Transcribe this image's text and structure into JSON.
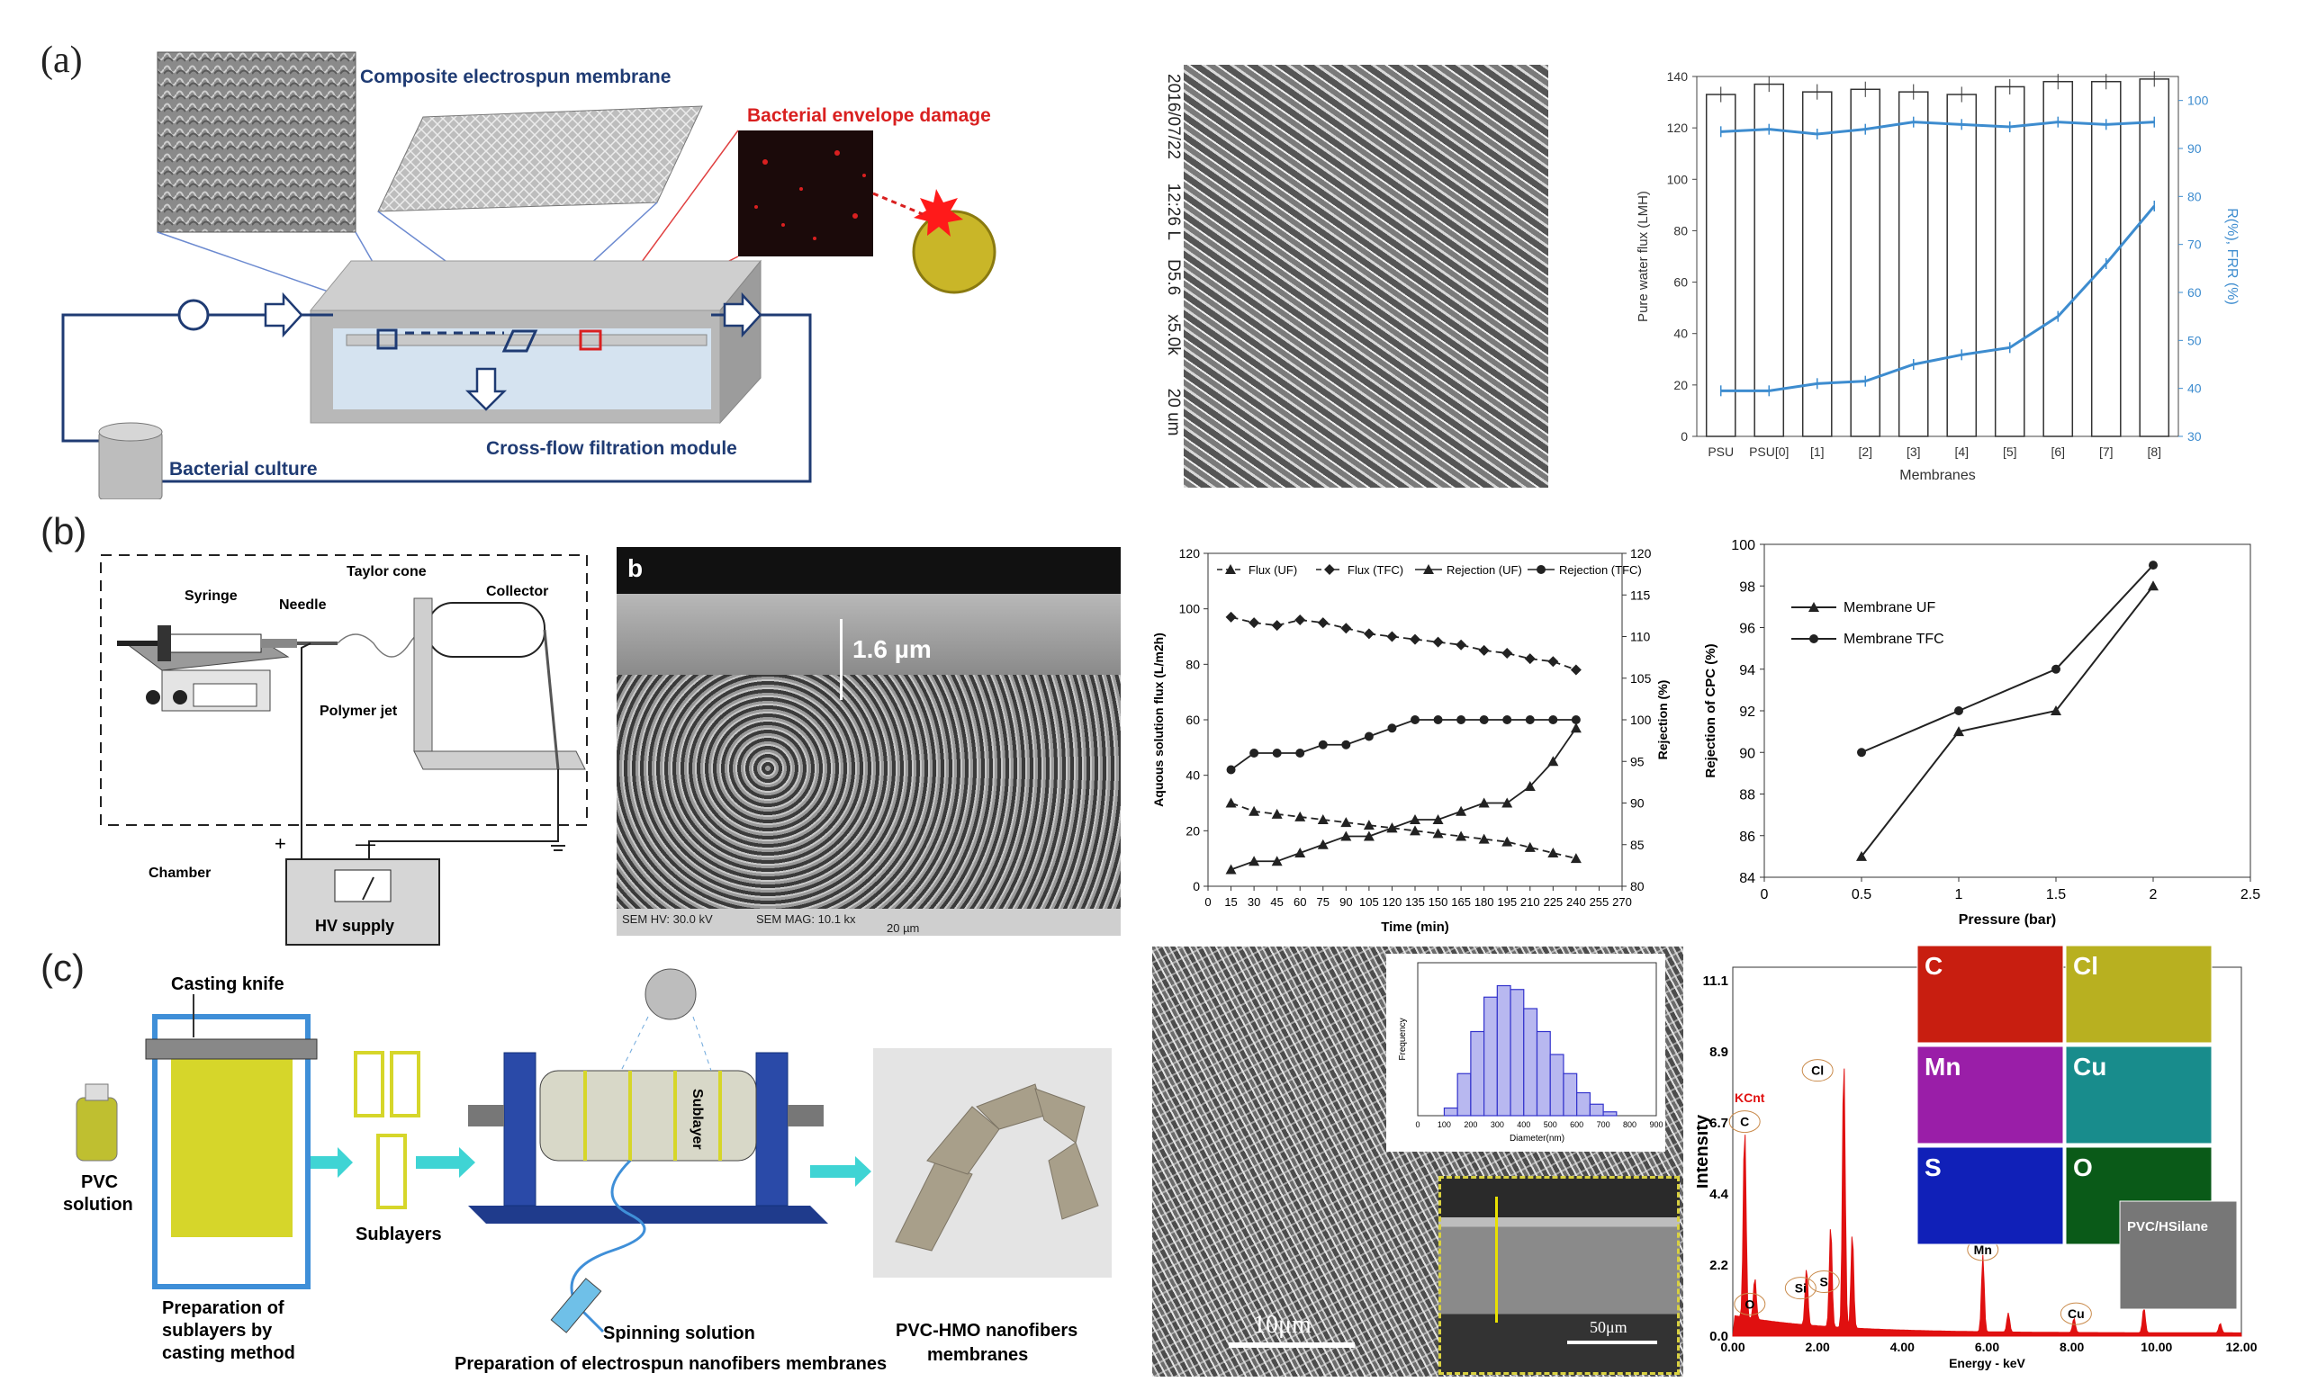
{
  "panels": {
    "a": {
      "label": "(a)",
      "membrane_label": "Composite electrospun membrane",
      "damage_label": "Bacterial envelope damage",
      "module_label": "Cross-flow  filtration module",
      "culture_label": "Bacterial culture",
      "sem_caption": [
        "2016/07/22",
        "12:26 L",
        "D5.6",
        "x5.0k",
        "20 um"
      ]
    },
    "b": {
      "label": "(b)",
      "syringe": "Syringe",
      "needle": "Needle",
      "taylor_cone": "Taylor cone",
      "collector": "Collector",
      "polymer_jet": "Polymer jet",
      "chamber": "Chamber",
      "hv_supply": "HV supply",
      "plus": "+",
      "minus": "—",
      "sem_letter": "b",
      "thickness": "1.6 µm",
      "sem_hv": "SEM HV: 30.0 kV",
      "sem_mag": "SEM MAG: 10.1 kx",
      "scale": "20 µm"
    },
    "c": {
      "label": "(c)",
      "casting_knife": "Casting knife",
      "pvc_solution": [
        "PVC",
        "solution"
      ],
      "sublayers": "Sublayers",
      "sublayer_drum": "Sublayer",
      "prep_casting": [
        "Preparation of",
        "sublayers by",
        "casting method"
      ],
      "spinning_solution": "Spinning solution",
      "prep_electrospun": "Preparation of electrospun nanofibers membranes",
      "product": [
        "PVC-HMO nanofibers",
        "membranes"
      ],
      "sem_scale": "10μm",
      "inset_scale": "50μm",
      "eds_elements": [
        "C",
        "Cl",
        "Mn",
        "Cu",
        "S",
        "O"
      ],
      "eds_sample": "PVC/HSilane",
      "eds_kcnt": "KCnt",
      "eds_ylabel": "Intensity",
      "eds_xlabel": "Energy - keV",
      "eds_yticks": [
        "11.1",
        "8.9",
        "6.7",
        "4.4",
        "2.2",
        "0.0"
      ],
      "eds_xticks": [
        "0.00",
        "2.00",
        "4.00",
        "6.00",
        "8.00",
        "10.00",
        "12.00"
      ],
      "eds_peak_labels": [
        "C",
        "O",
        "Si",
        "S",
        "Cl",
        "Mn",
        "Cu"
      ]
    }
  },
  "colors": {
    "navy": "#1f3b73",
    "accent_red": "#d92020",
    "flux_blue": "#3d8ccf",
    "eds_red": "#e01010",
    "hist_blue": "#3333cc",
    "inset_yellow": "#d8d040",
    "arrow_cyan": "#3fd4d4",
    "sublayer_yellow": "#d6d62a"
  },
  "chart_data": [
    {
      "id": "a-chart",
      "type": "bar",
      "xlabel": "Membranes",
      "ylabel": "Pure water flux (LMH)",
      "y2label": "R(%), FRR (%)",
      "categories": [
        "PSU",
        "PSU[0]",
        "[1]",
        "[2]",
        "[3]",
        "[4]",
        "[5]",
        "[6]",
        "[7]",
        "[8]"
      ],
      "ylim": [
        0,
        140
      ],
      "y2lim": [
        30,
        105
      ],
      "yticks": [
        0,
        20,
        40,
        60,
        80,
        100,
        120,
        140
      ],
      "y2ticks": [
        30,
        40,
        50,
        60,
        70,
        80,
        90,
        100
      ],
      "bars": [
        133,
        137,
        134,
        135,
        134,
        133,
        136,
        138,
        138,
        139
      ],
      "line_upper": [
        93.5,
        94,
        93,
        94,
        95.5,
        95,
        94.5,
        95.5,
        95,
        95.5
      ],
      "line_lower": [
        39.5,
        39.5,
        41,
        41.5,
        45,
        47,
        48.5,
        55,
        66,
        78
      ]
    },
    {
      "id": "b-chart1",
      "type": "line",
      "xlabel": "Time (min)",
      "ylabel": "Aquous solution flux (L/m2h)",
      "y2label": "Rejection (%)",
      "xlim": [
        0,
        270
      ],
      "xticks": [
        0,
        15,
        30,
        45,
        60,
        75,
        90,
        105,
        120,
        135,
        150,
        165,
        180,
        195,
        210,
        225,
        240,
        255,
        270
      ],
      "ylim": [
        0,
        120
      ],
      "yticks": [
        0,
        20,
        40,
        60,
        80,
        100,
        120
      ],
      "y2lim": [
        80,
        120
      ],
      "y2ticks": [
        80,
        85,
        90,
        95,
        100,
        105,
        110,
        115,
        120
      ],
      "x": [
        15,
        30,
        45,
        60,
        75,
        90,
        105,
        120,
        135,
        150,
        165,
        180,
        195,
        210,
        225,
        240
      ],
      "series": [
        {
          "name": "Flux (UF)",
          "axis": "left",
          "dash": true,
          "marker": "triangle",
          "values": [
            30,
            27,
            26,
            25,
            24,
            23,
            22,
            21,
            20,
            19,
            18,
            17,
            16,
            14,
            12,
            10
          ]
        },
        {
          "name": "Flux (TFC)",
          "axis": "left",
          "dash": true,
          "marker": "diamond",
          "values": [
            97,
            95,
            94,
            96,
            95,
            93,
            91,
            90,
            89,
            88,
            87,
            85,
            84,
            82,
            81,
            78
          ]
        },
        {
          "name": "Rejection (UF)",
          "axis": "right",
          "dash": false,
          "marker": "triangle",
          "values": [
            82,
            83,
            83,
            84,
            85,
            86,
            86,
            87,
            88,
            88,
            89,
            90,
            90,
            92,
            95,
            99
          ]
        },
        {
          "name": "Rejection (TFC)",
          "axis": "right",
          "dash": false,
          "marker": "circle",
          "values": [
            94,
            96,
            96,
            96,
            97,
            97,
            98,
            99,
            100,
            100,
            100,
            100,
            100,
            100,
            100,
            100
          ]
        }
      ]
    },
    {
      "id": "b-chart2",
      "type": "line",
      "xlabel": "Pressure (bar)",
      "ylabel": "Rejection of CPC (%)",
      "xlim": [
        0,
        2.5
      ],
      "xticks": [
        0,
        0.5,
        1,
        1.5,
        2,
        2.5
      ],
      "ylim": [
        84,
        100
      ],
      "yticks": [
        84,
        86,
        88,
        90,
        92,
        94,
        96,
        98,
        100
      ],
      "x": [
        0.5,
        1,
        1.5,
        2
      ],
      "series": [
        {
          "name": "Membrane UF",
          "marker": "triangle",
          "values": [
            85,
            91,
            92,
            98
          ]
        },
        {
          "name": "Membrane TFC",
          "marker": "circle",
          "values": [
            90,
            92,
            94,
            99
          ]
        }
      ]
    },
    {
      "id": "c-hist",
      "type": "bar",
      "xlabel": "Diameter(nm)",
      "ylabel": "Frequency",
      "xlim": [
        0,
        900
      ],
      "xticks": [
        0,
        100,
        200,
        300,
        400,
        500,
        600,
        700,
        800,
        900
      ],
      "ylim": [
        0,
        40
      ],
      "bin_starts": [
        100,
        150,
        200,
        250,
        300,
        350,
        400,
        450,
        500,
        550,
        600,
        650,
        700,
        750
      ],
      "bin_width": 50,
      "values": [
        2,
        11,
        22,
        31,
        34,
        33,
        28,
        22,
        16,
        11,
        6,
        3,
        1,
        0
      ]
    }
  ]
}
